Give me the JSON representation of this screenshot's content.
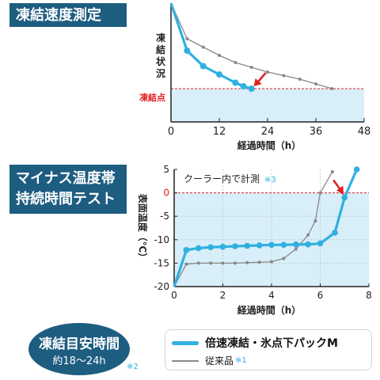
{
  "section1": {
    "title": "凍結速度測定"
  },
  "section2": {
    "title_line1": "マイナス温度帯",
    "title_line2": "持続時間テスト"
  },
  "badge": {
    "title": "凍結目安時間",
    "subtitle": "約18～24h",
    "note": "※2"
  },
  "legend": {
    "series1": "倍速凍結・氷点下パックM",
    "series2": "従来品",
    "series2_note": "※1"
  },
  "colors": {
    "primary": "#2fb0e0",
    "secondary": "#888888",
    "marker": "#e02020",
    "zone": "#d8eef9",
    "tag": "#1d5d80"
  },
  "chart_data": [
    {
      "type": "line",
      "xlabel": "経過時間（h）",
      "ylabel": "凍結状況",
      "threshold_label": "凍結点",
      "xlim": [
        0,
        48
      ],
      "xticks": [
        "0",
        "12",
        "24",
        "36",
        "48"
      ],
      "ylim": [
        0,
        1
      ],
      "freezing_point": 0.28,
      "grid": false,
      "series": [
        {
          "name": "倍速凍結・氷点下パックM",
          "x": [
            0,
            4,
            8,
            12,
            16,
            18,
            20
          ],
          "y": [
            1.0,
            0.6,
            0.47,
            0.4,
            0.33,
            0.3,
            0.28
          ]
        },
        {
          "name": "従来品",
          "x": [
            0,
            4,
            8,
            12,
            16,
            20,
            24,
            28,
            32,
            36,
            40
          ],
          "y": [
            1.0,
            0.7,
            0.63,
            0.56,
            0.5,
            0.46,
            0.42,
            0.39,
            0.36,
            0.32,
            0.28
          ]
        }
      ],
      "arrow_at": {
        "x": 20,
        "y": 0.28
      }
    },
    {
      "type": "line",
      "annotation": "クーラー内で計測",
      "annotation_note": "※3",
      "xlabel": "経過時間（h）",
      "ylabel": "表面温度（℃）",
      "xlim": [
        0,
        8
      ],
      "xticks": [
        "0",
        "2",
        "4",
        "6",
        "8"
      ],
      "ylim": [
        -20,
        5
      ],
      "yticks": [
        "5",
        "0",
        "-5",
        "-10",
        "-15",
        "-20"
      ],
      "grid": true,
      "series": [
        {
          "name": "倍速凍結・氷点下パックM",
          "x": [
            0,
            0.5,
            1.0,
            1.5,
            2.0,
            2.5,
            3.0,
            3.5,
            4.0,
            4.5,
            5.0,
            5.5,
            6.0,
            6.6,
            7.0,
            7.5
          ],
          "y": [
            -20,
            -12.2,
            -11.8,
            -11.6,
            -11.5,
            -11.4,
            -11.3,
            -11.2,
            -11.1,
            -11.1,
            -11.0,
            -11.0,
            -10.8,
            -8.5,
            -1.0,
            5.0
          ]
        },
        {
          "name": "従来品",
          "x": [
            0,
            0.5,
            1.0,
            1.5,
            2.0,
            2.5,
            3.0,
            3.5,
            4.0,
            4.5,
            5.0,
            5.5,
            5.8,
            6.0,
            6.5
          ],
          "y": [
            -20,
            -15.2,
            -15.0,
            -15.0,
            -15.0,
            -15.0,
            -14.9,
            -14.8,
            -14.7,
            -14.0,
            -12.0,
            -9.0,
            -6.0,
            0,
            4.5
          ]
        }
      ],
      "arrow_at": {
        "x": 7.0,
        "y": -1.0
      }
    }
  ]
}
